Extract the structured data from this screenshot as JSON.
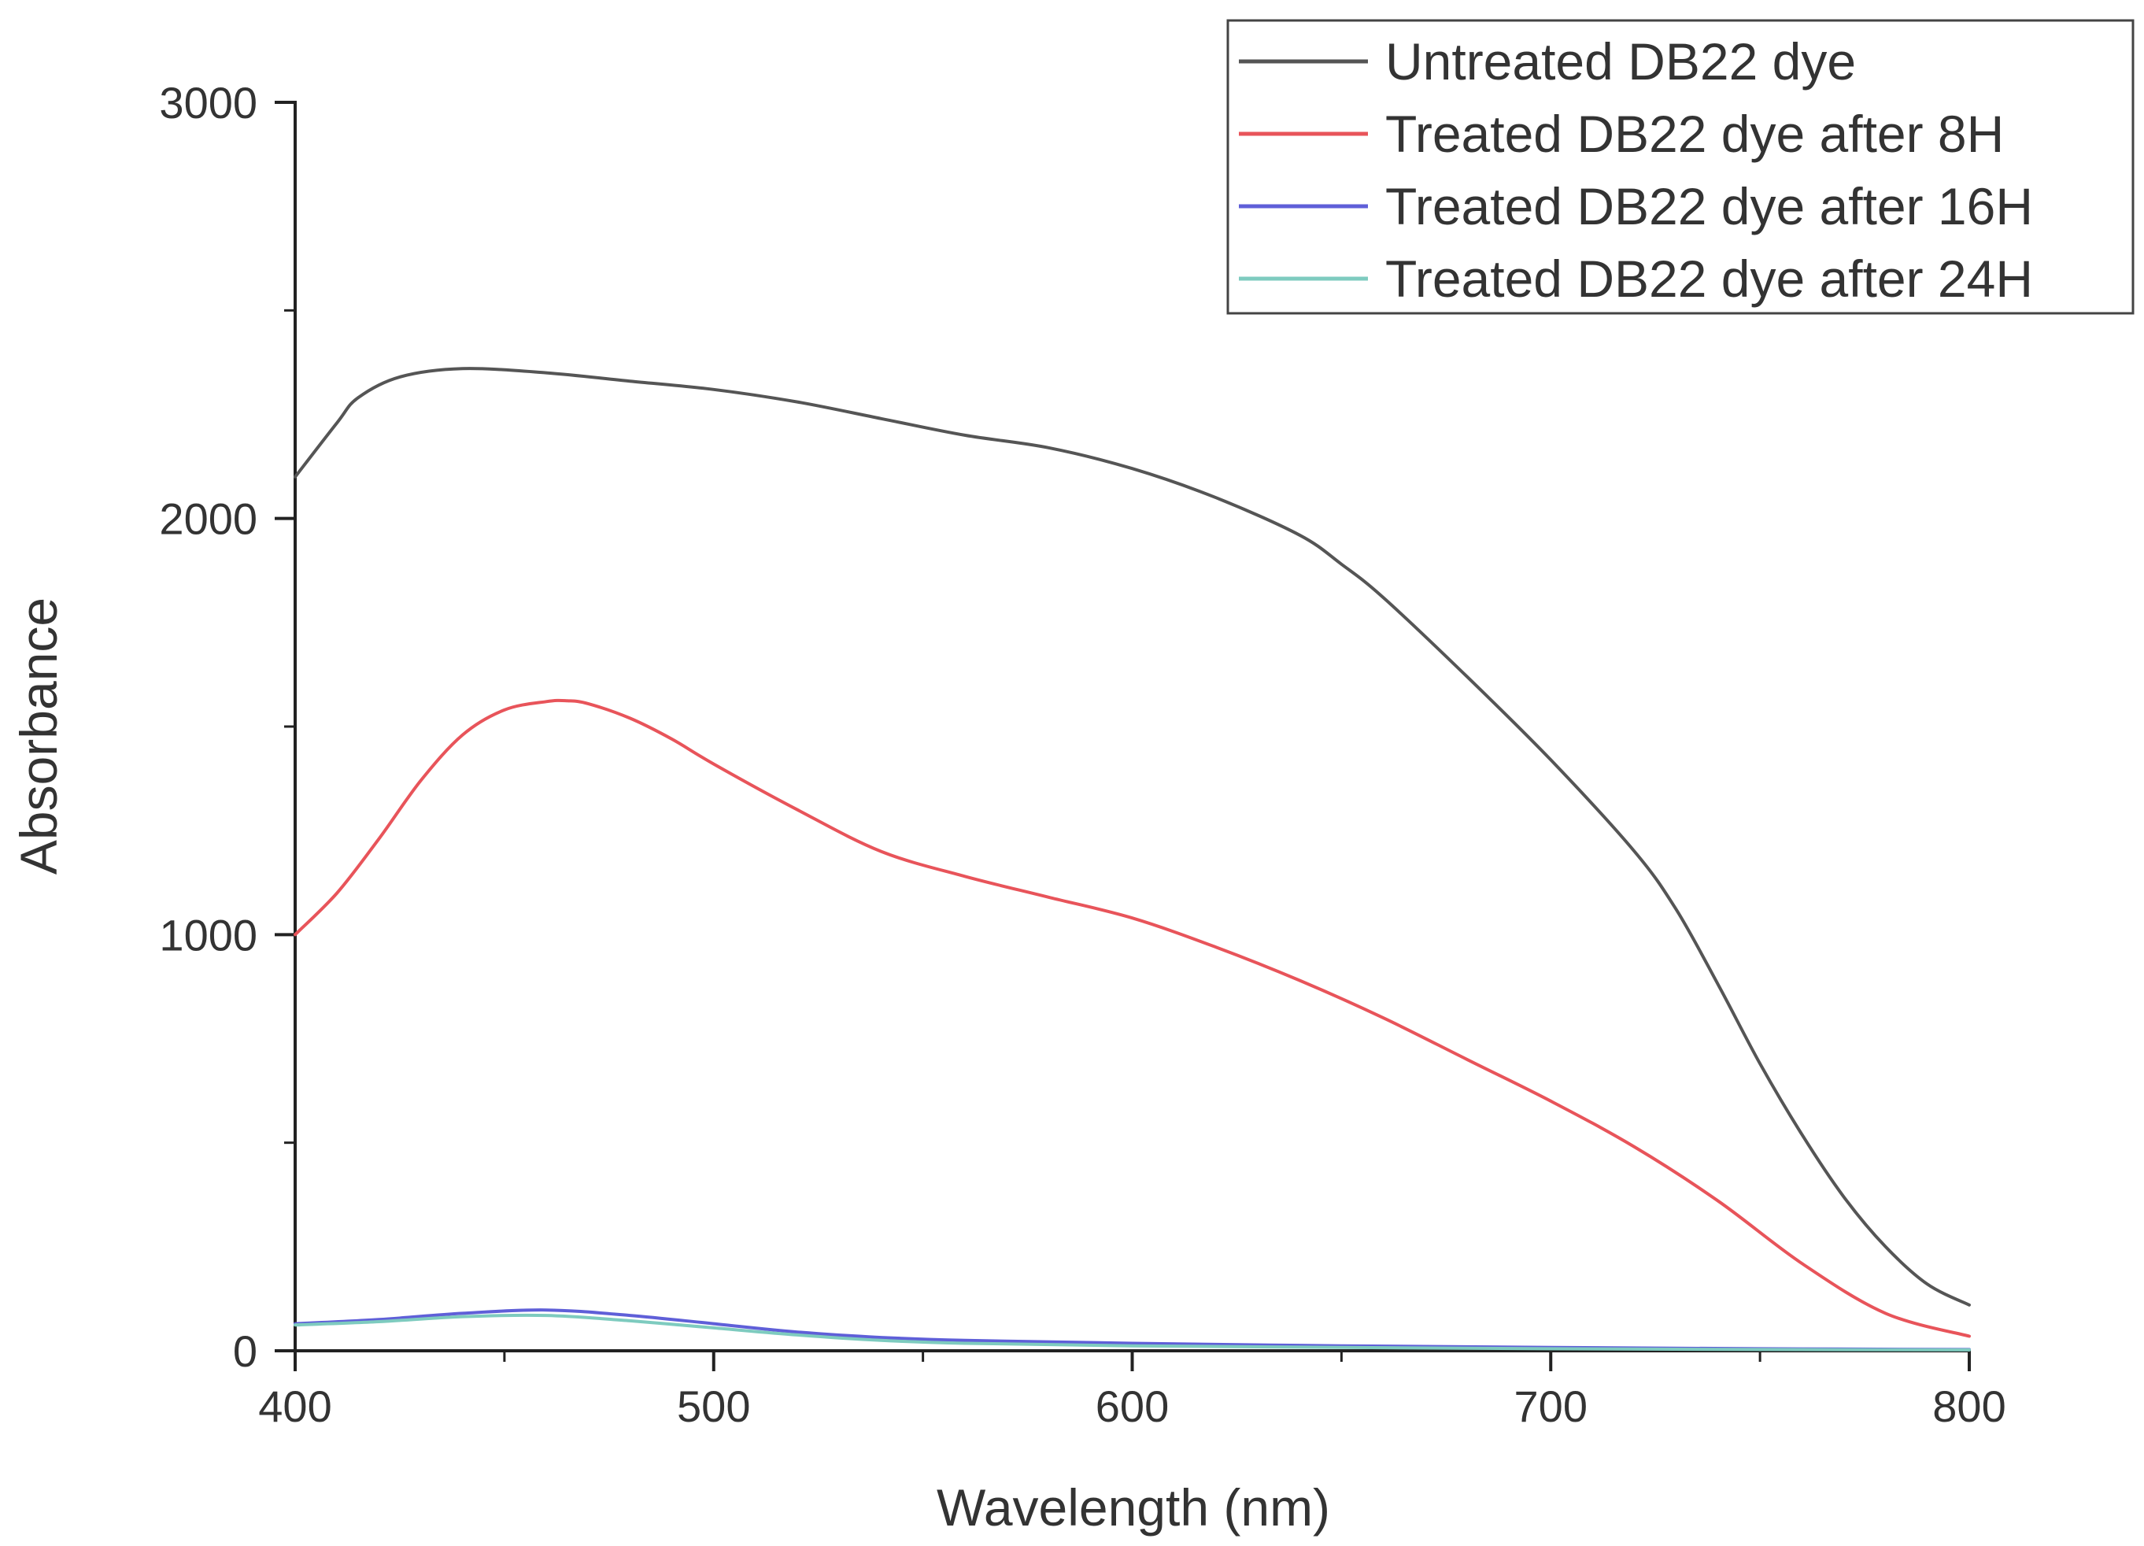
{
  "chart_data": {
    "type": "line",
    "title": "",
    "xlabel": "Wavelength (nm)",
    "ylabel": "Absorbance",
    "xlim": [
      400,
      800
    ],
    "ylim": [
      0,
      3000
    ],
    "x_ticks": [
      400,
      500,
      600,
      700,
      800
    ],
    "y_ticks": [
      0,
      1000,
      2000,
      3000
    ],
    "x_minor_ticks": [
      450,
      550,
      650,
      750
    ],
    "y_minor_ticks": [
      500,
      1500,
      2500
    ],
    "grid": false,
    "legend_position": "top-right",
    "series": [
      {
        "name": "Untreated DB22 dye",
        "color": "#555555",
        "x": [
          400,
          410,
          415,
          425,
          440,
          460,
          480,
          500,
          520,
          540,
          560,
          580,
          600,
          620,
          640,
          650,
          660,
          680,
          700,
          720,
          730,
          740,
          750,
          760,
          770,
          780,
          790,
          800
        ],
        "y": [
          2100,
          2230,
          2290,
          2340,
          2360,
          2350,
          2330,
          2310,
          2280,
          2240,
          2200,
          2170,
          2120,
          2050,
          1960,
          1890,
          1810,
          1620,
          1420,
          1200,
          1060,
          880,
          690,
          520,
          370,
          250,
          160,
          110
        ]
      },
      {
        "name": "Treated DB22 dye after 8H",
        "color": "#e8545a",
        "x": [
          400,
          410,
          420,
          430,
          440,
          450,
          460,
          465,
          470,
          480,
          490,
          500,
          520,
          540,
          560,
          580,
          600,
          620,
          640,
          660,
          680,
          700,
          720,
          740,
          760,
          780,
          800
        ],
        "y": [
          1000,
          1100,
          1230,
          1370,
          1480,
          1540,
          1560,
          1562,
          1555,
          1520,
          1470,
          1410,
          1300,
          1200,
          1140,
          1090,
          1040,
          970,
          890,
          800,
          700,
          600,
          490,
          360,
          210,
          90,
          35
        ]
      },
      {
        "name": "Treated DB22 dye after 16H",
        "color": "#5f5fd8",
        "x": [
          400,
          420,
          440,
          460,
          480,
          500,
          520,
          540,
          560,
          600,
          650,
          700,
          750,
          800
        ],
        "y": [
          65,
          75,
          90,
          98,
          85,
          65,
          45,
          32,
          25,
          18,
          12,
          8,
          5,
          3
        ]
      },
      {
        "name": "Treated DB22 dye after 24H",
        "color": "#7ecbbf",
        "x": [
          400,
          420,
          440,
          460,
          480,
          500,
          520,
          540,
          560,
          600,
          650,
          700,
          750,
          800
        ],
        "y": [
          62,
          70,
          82,
          85,
          72,
          55,
          38,
          25,
          18,
          12,
          8,
          5,
          3,
          2
        ]
      }
    ]
  }
}
